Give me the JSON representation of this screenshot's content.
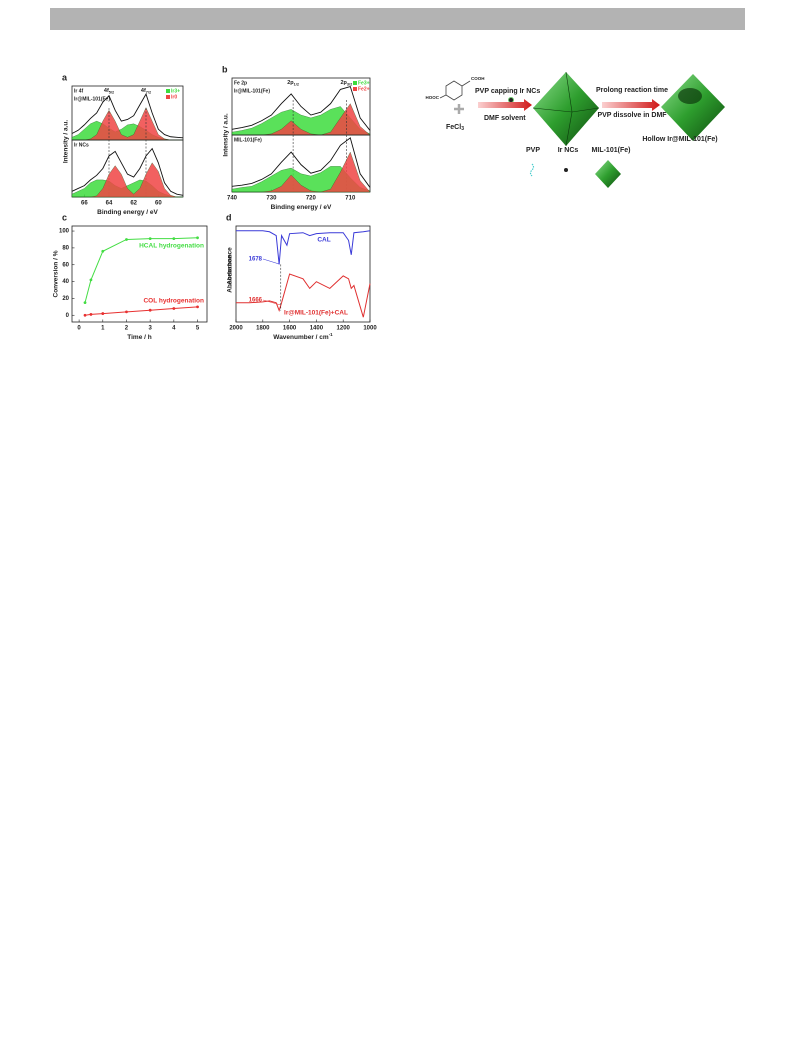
{
  "chart_data": [
    {
      "type": "xps",
      "panel": "a",
      "core_level": "Ir 4f",
      "sample": "Ir@MIL-101(Fe)",
      "ylabel": "Intensity / a.u.",
      "x": [
        67,
        66.5,
        66,
        65.5,
        65,
        64.5,
        64,
        63.5,
        63,
        62.5,
        62,
        61.5,
        61,
        60.5,
        60,
        59.5,
        59,
        58.5,
        58
      ],
      "xlim": [
        67,
        58
      ],
      "ylim": [
        0,
        1
      ],
      "series": [
        {
          "name": "Ir3+",
          "color": "#3ddc3d",
          "values": [
            0.05,
            0.1,
            0.2,
            0.3,
            0.35,
            0.3,
            0.22,
            0.15,
            0.2,
            0.28,
            0.3,
            0.25,
            0.18,
            0.1,
            0.05,
            0.02,
            0,
            0,
            0
          ]
        },
        {
          "name": "Ir0",
          "color": "#f04444",
          "values": [
            0,
            0,
            0,
            0.02,
            0.1,
            0.35,
            0.55,
            0.35,
            0.1,
            0.05,
            0.1,
            0.35,
            0.6,
            0.35,
            0.1,
            0.02,
            0,
            0,
            0
          ]
        }
      ],
      "envelope": [
        0.12,
        0.18,
        0.28,
        0.4,
        0.5,
        0.7,
        0.82,
        0.55,
        0.35,
        0.38,
        0.45,
        0.65,
        0.85,
        0.5,
        0.2,
        0.1,
        0.06,
        0.05,
        0.04
      ],
      "peak_labels": [
        {
          "main": "4f",
          "sub": "5/2",
          "x": 64
        },
        {
          "main": "4f",
          "sub": "7/2",
          "x": 61
        }
      ]
    },
    {
      "type": "xps",
      "sample": "Ir NCs",
      "xlabel": "Binding energy / eV",
      "x": [
        67,
        66.5,
        66,
        65.5,
        65,
        64.5,
        64,
        63.5,
        63,
        62.5,
        62,
        61.5,
        61,
        60.5,
        60,
        59.5,
        59,
        58.5,
        58
      ],
      "xlim": [
        67,
        58
      ],
      "ylim": [
        0,
        1
      ],
      "xticks": [
        66,
        64,
        62,
        60
      ],
      "series": [
        {
          "color": "#3ddc3d",
          "values": [
            0.05,
            0.1,
            0.15,
            0.25,
            0.3,
            0.3,
            0.28,
            0.2,
            0.15,
            0.2,
            0.25,
            0.3,
            0.28,
            0.2,
            0.1,
            0.05,
            0.02,
            0,
            0
          ]
        },
        {
          "color": "#f04444",
          "values": [
            0,
            0,
            0,
            0,
            0.02,
            0.15,
            0.4,
            0.55,
            0.4,
            0.15,
            0.05,
            0.15,
            0.4,
            0.6,
            0.45,
            0.15,
            0.03,
            0,
            0
          ]
        }
      ],
      "envelope": [
        0.1,
        0.15,
        0.2,
        0.3,
        0.38,
        0.5,
        0.72,
        0.8,
        0.6,
        0.4,
        0.35,
        0.5,
        0.72,
        0.85,
        0.6,
        0.25,
        0.1,
        0.05,
        0.03
      ]
    },
    {
      "type": "xps",
      "panel": "b",
      "core_level": "Fe 2p",
      "sample": "Ir@MIL-101(Fe)",
      "ylabel": "Intensity / a.u.",
      "x": [
        740,
        737.5,
        735,
        732.5,
        730,
        727.5,
        725,
        722.5,
        720,
        717.5,
        715,
        712.5,
        710,
        707.5,
        705
      ],
      "xlim": [
        740,
        705
      ],
      "ylim": [
        0,
        1
      ],
      "series": [
        {
          "name": "Fe3+",
          "color": "#3ddc3d",
          "values": [
            0.05,
            0.08,
            0.12,
            0.2,
            0.3,
            0.4,
            0.45,
            0.35,
            0.3,
            0.35,
            0.45,
            0.5,
            0.3,
            0.1,
            0.02
          ]
        },
        {
          "name": "Fe2+",
          "color": "#f04444",
          "values": [
            0,
            0,
            0,
            0,
            0.02,
            0.1,
            0.25,
            0.1,
            0.02,
            0,
            0.05,
            0.3,
            0.55,
            0.15,
            0
          ]
        }
      ],
      "envelope": [
        0.1,
        0.13,
        0.17,
        0.25,
        0.35,
        0.55,
        0.72,
        0.5,
        0.35,
        0.4,
        0.55,
        0.8,
        0.85,
        0.3,
        0.08
      ],
      "peak_labels": [
        {
          "main": "2p",
          "sub": "1/2",
          "x": 724.5
        },
        {
          "main": "2p",
          "sub": "3/2",
          "x": 711
        }
      ]
    },
    {
      "type": "xps",
      "sample": "MIL-101(Fe)",
      "xlabel": "Binding energy / eV",
      "x": [
        740,
        737.5,
        735,
        732.5,
        730,
        727.5,
        725,
        722.5,
        720,
        717.5,
        715,
        712.5,
        710,
        707.5,
        705
      ],
      "xlim": [
        740,
        705
      ],
      "ylim": [
        0,
        1
      ],
      "xticks": [
        740,
        730,
        720,
        710
      ],
      "series": [
        {
          "color": "#3ddc3d",
          "values": [
            0.05,
            0.08,
            0.1,
            0.18,
            0.28,
            0.38,
            0.42,
            0.32,
            0.28,
            0.34,
            0.45,
            0.45,
            0.25,
            0.08,
            0.02
          ]
        },
        {
          "color": "#f04444",
          "values": [
            0,
            0,
            0,
            0,
            0.02,
            0.1,
            0.3,
            0.12,
            0.02,
            0,
            0.05,
            0.35,
            0.7,
            0.2,
            0
          ]
        }
      ],
      "envelope": [
        0.1,
        0.12,
        0.15,
        0.22,
        0.32,
        0.52,
        0.7,
        0.48,
        0.33,
        0.38,
        0.55,
        0.82,
        0.95,
        0.32,
        0.08
      ]
    },
    {
      "type": "line",
      "panel": "c",
      "xlabel": "Time / h",
      "ylabel": "Conversion / %",
      "x": [
        0.25,
        0.5,
        1,
        2,
        3,
        4,
        5
      ],
      "xlim": [
        -0.3,
        5.4
      ],
      "xticks": [
        0,
        1,
        2,
        3,
        4,
        5
      ],
      "ylim": [
        -8,
        106
      ],
      "yticks": [
        0,
        20,
        40,
        60,
        80,
        100
      ],
      "series": [
        {
          "name": "HCAL hydrogenation",
          "color": "#44dd44",
          "values": [
            15,
            42,
            76,
            90,
            91,
            91,
            92
          ]
        },
        {
          "name": "COL hydrogenation",
          "color": "#e83030",
          "values": [
            0,
            1,
            2,
            4,
            6,
            8,
            10
          ]
        }
      ]
    },
    {
      "type": "ir",
      "panel": "d",
      "xlabel": "Wavenumber / cm",
      "xlabel_sup": "-1",
      "ylabel": "Absorbance",
      "x": [
        2000,
        1900,
        1800,
        1750,
        1700,
        1678,
        1660,
        1620,
        1600,
        1500,
        1450,
        1400,
        1300,
        1200,
        1160,
        1140,
        1120,
        1050,
        1000
      ],
      "xlim": [
        2000,
        1000
      ],
      "xticks": [
        2000,
        1800,
        1600,
        1400,
        1200,
        1000
      ],
      "ylim": [
        0,
        1
      ],
      "series": [
        {
          "name": "CAL",
          "color": "#3a3ad8",
          "values": [
            0.95,
            0.95,
            0.95,
            0.94,
            0.9,
            0.6,
            0.9,
            0.8,
            0.92,
            0.93,
            0.9,
            0.92,
            0.93,
            0.93,
            0.85,
            0.7,
            0.93,
            0.94,
            0.95
          ]
        },
        {
          "name": "Ir@MIL-101(Fe)+CAL",
          "color": "#e03030",
          "values": [
            0.2,
            0.2,
            0.21,
            0.22,
            0.2,
            0.12,
            0.2,
            0.4,
            0.5,
            0.45,
            0.35,
            0.42,
            0.35,
            0.48,
            0.45,
            0.35,
            0.38,
            0.05,
            0.4
          ]
        }
      ],
      "marked_wavenumbers": [
        1678,
        1666
      ]
    }
  ],
  "scheme": {
    "cooh": "COOH",
    "hooc": "HOOC",
    "fecl": "FeCl",
    "fecl_sub": "3",
    "step1": "PVP capping Ir NCs",
    "step1b": "DMF solvent",
    "step2": "Prolong reaction time",
    "step2b": "PVP dissolve in DMF",
    "product": "Hollow Ir@MIL-101(Fe)",
    "legend": [
      "PVP",
      "Ir NCs",
      "MIL-101(Fe)"
    ]
  }
}
